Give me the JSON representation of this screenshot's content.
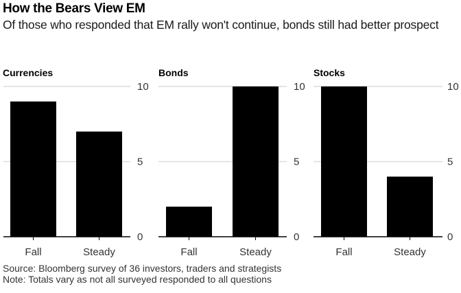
{
  "title": "How the Bears View EM",
  "subtitle": "Of those who responded that EM rally won't continue, bonds still had better prospect",
  "footer": {
    "source": "Source: Bloomberg survey of 36 investors, traders and strategists",
    "note": "Note: Totals vary as not all surveyed responded to all questions"
  },
  "colors": {
    "bar": "#000000",
    "grid": "#dcdcdc",
    "axis": "#000000"
  },
  "chart_data": [
    {
      "type": "bar",
      "title": "Currencies",
      "categories": [
        "Fall",
        "Steady"
      ],
      "values": [
        9,
        7
      ],
      "ylim": [
        0,
        10
      ],
      "yticks": [
        0,
        5,
        10
      ],
      "xlabel": "",
      "ylabel": "",
      "grid": true
    },
    {
      "type": "bar",
      "title": "Bonds",
      "categories": [
        "Fall",
        "Steady"
      ],
      "values": [
        2,
        10
      ],
      "ylim": [
        0,
        10
      ],
      "yticks": [
        0,
        5,
        10
      ],
      "xlabel": "",
      "ylabel": "",
      "grid": true
    },
    {
      "type": "bar",
      "title": "Stocks",
      "categories": [
        "Fall",
        "Steady"
      ],
      "values": [
        10,
        4
      ],
      "ylim": [
        0,
        10
      ],
      "yticks": [
        0,
        5,
        10
      ],
      "xlabel": "",
      "ylabel": "",
      "grid": true
    }
  ]
}
